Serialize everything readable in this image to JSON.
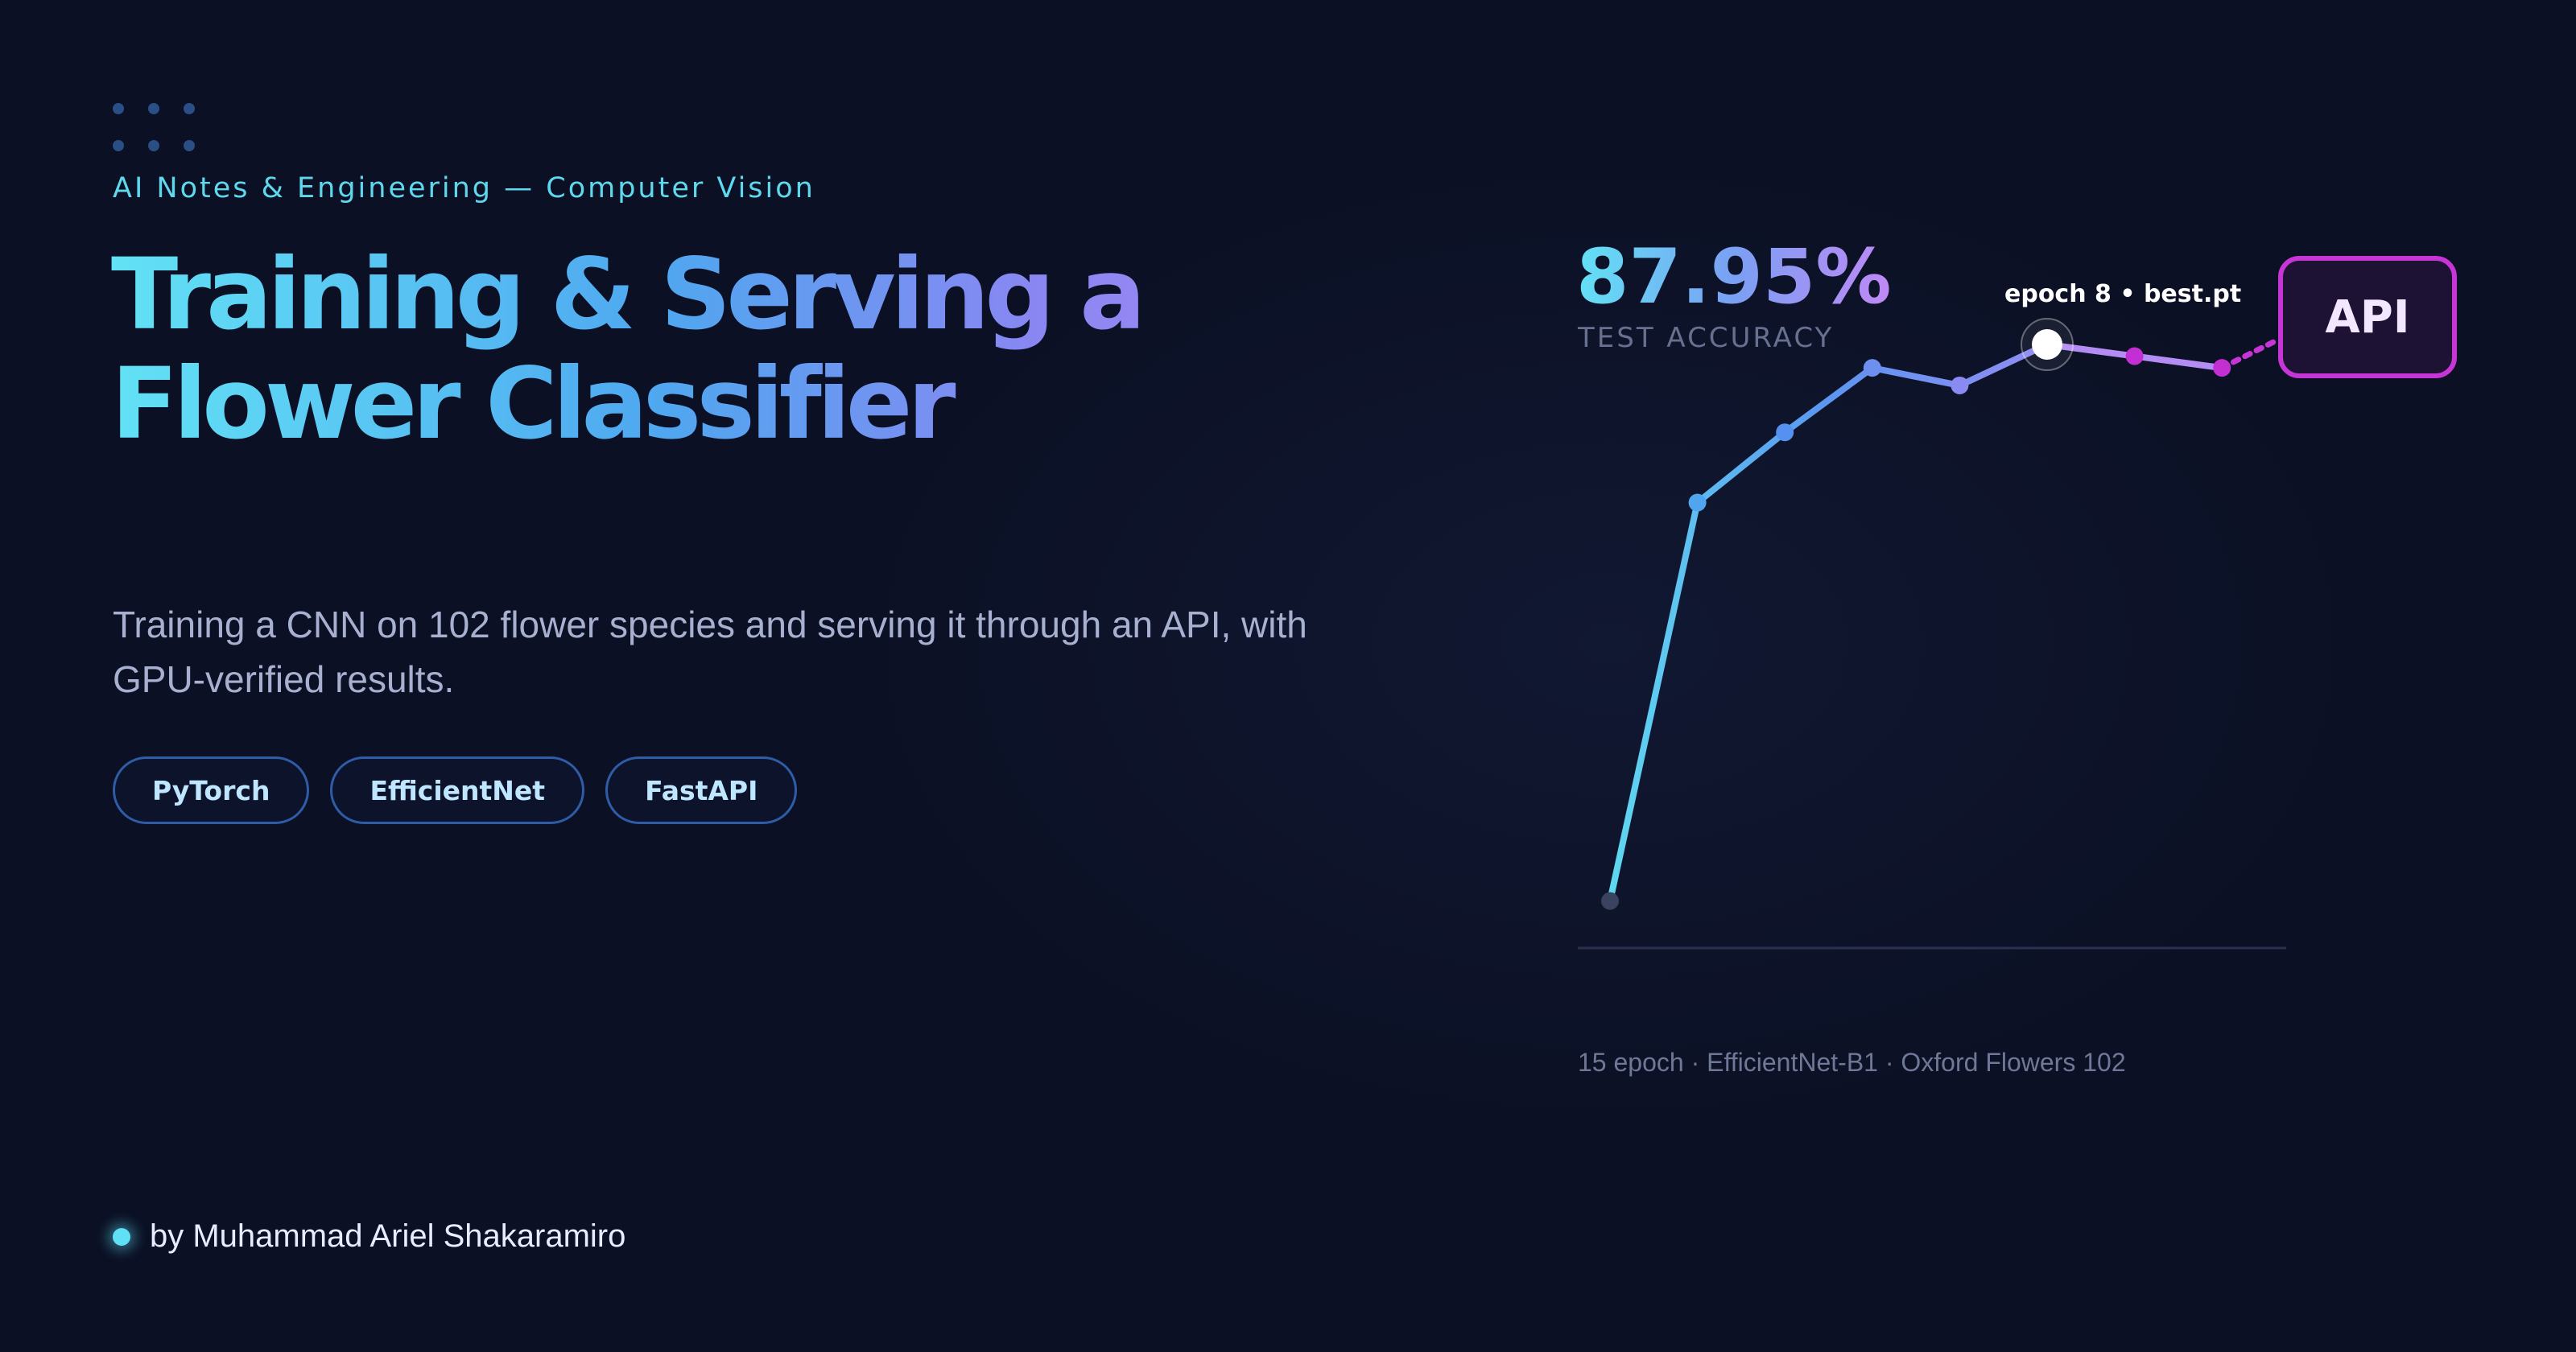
{
  "header": {
    "eyebrow": "AI Notes & Engineering — Computer Vision",
    "title": "Training & Serving a Flower Classifier"
  },
  "intro": {
    "subtitle": "Training a CNN on 102 flower species and serving it through an API, with GPU-verified results."
  },
  "tags": [
    "PyTorch",
    "EfficientNet",
    "FastAPI"
  ],
  "author": {
    "byline": "by Muhammad Ariel Shakaramiro"
  },
  "stat": {
    "value": "87.95%",
    "label": "TEST ACCURACY"
  },
  "best_marker": {
    "label": "epoch 8 • best.pt"
  },
  "api_box": {
    "label": "API"
  },
  "footnote": "15 epoch · EfficientNet-B1 · Oxford Flowers 102",
  "colors": {
    "background": "#0b1024",
    "accent_cyan": "#5fd8ee",
    "accent_blue": "#5b8ef0",
    "accent_purple": "#a28af2",
    "accent_magenta": "#c635d6"
  },
  "chart_data": {
    "type": "line",
    "title": "",
    "xlabel": "",
    "ylabel": "",
    "grid": false,
    "series": [
      {
        "x": [
          1,
          2,
          3,
          4,
          5,
          6,
          7,
          8
        ],
        "values": [
          5,
          73,
          85,
          96,
          93,
          100,
          98,
          96
        ]
      }
    ],
    "highlight_index": 5,
    "ylim": [
      0,
      105
    ]
  }
}
